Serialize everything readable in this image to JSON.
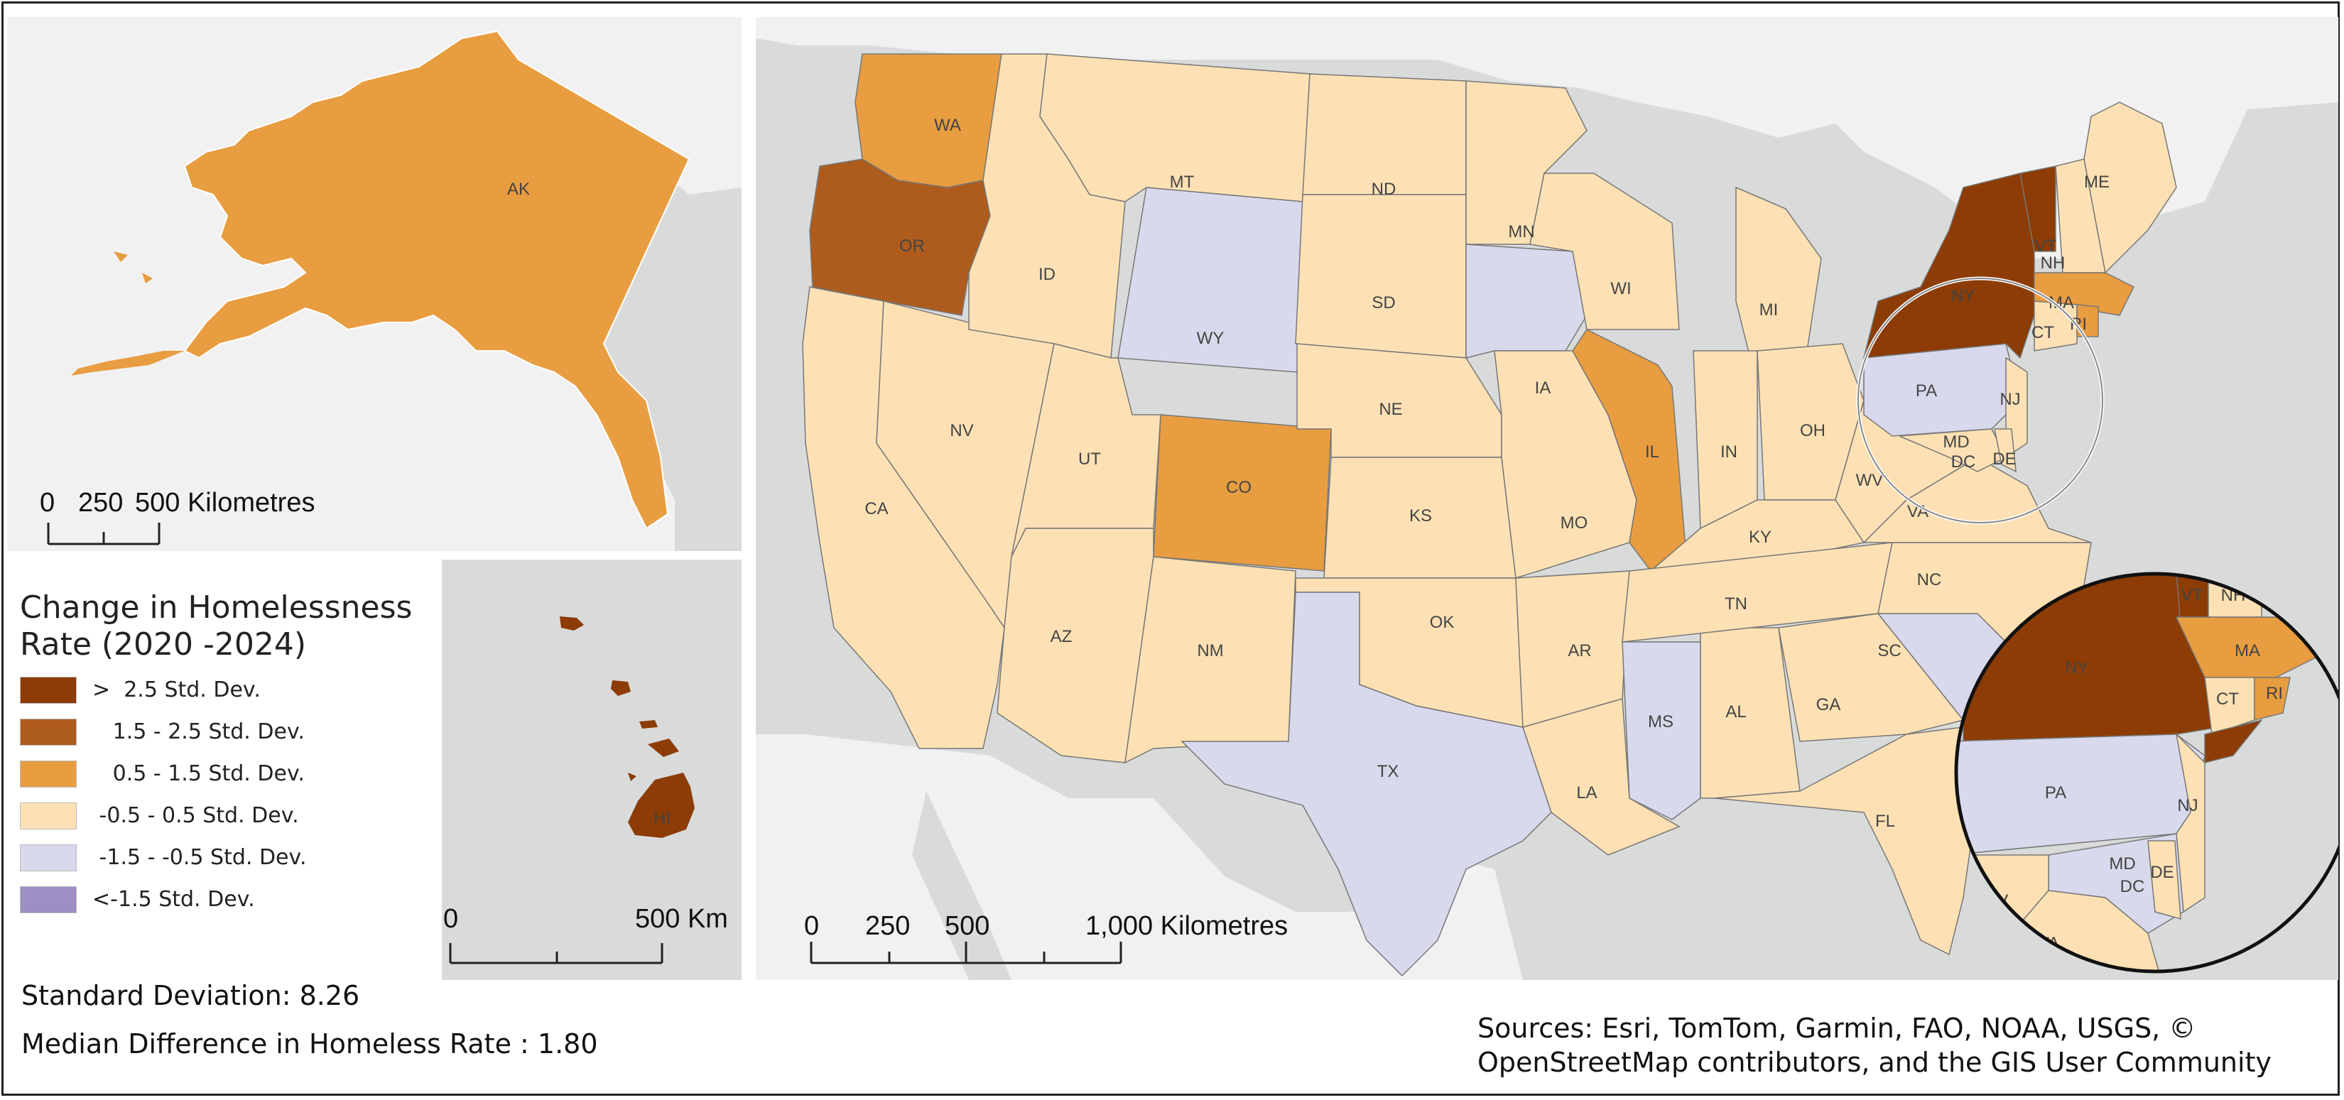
{
  "colors": {
    "water": "#d9dbdb",
    "land": "#f1f1f1",
    "gt_2_5": "#8c3c04",
    "1_5_to_2_5": "#ae5c1d",
    "0_5_to_1_5": "#e89d40",
    "m0_5_to_0_5": "#fde1b4",
    "m1_5_to_m0_5": "#d8d9ec",
    "lt_m1_5": "#9d8fc6"
  },
  "legend": {
    "title_line1": "Change in Homelessness",
    "title_line2": "Rate (2020 -2024)",
    "items": [
      {
        "label": ">  2.5 Std. Dev.",
        "color": "#8c3c04"
      },
      {
        "label": "   1.5 - 2.5 Std. Dev.",
        "color": "#ae5c1d"
      },
      {
        "label": "   0.5 - 1.5 Std. Dev.",
        "color": "#e89d40"
      },
      {
        "label": " -0.5 - 0.5 Std. Dev.",
        "color": "#fde1b4"
      },
      {
        "label": " -1.5 - -0.5 Std. Dev.",
        "color": "#d8d9ec"
      },
      {
        "label": "<-1.5 Std. Dev.",
        "color": "#9d8fc6"
      }
    ]
  },
  "stats": {
    "std_dev": "Standard Deviation: 8.26",
    "median": "Median Difference in Homeless Rate : 1.80"
  },
  "sources": {
    "line1": "Sources: Esri, TomTom, Garmin, FAO, NOAA, USGS, ©",
    "line2": "OpenStreetMap contributors, and the GIS User Community"
  },
  "alaska_scale": {
    "t0": "0",
    "t1": "250",
    "t2": "500 Kilometres"
  },
  "hawaii_scale": {
    "t0": "0",
    "t1": "500 Km"
  },
  "conus_scale": {
    "t0": "0",
    "t1": "250",
    "t2": "500",
    "t3": "1,000 Kilometres"
  },
  "labels": {
    "AK": "AK",
    "HI": "HI",
    "WA": "WA",
    "OR": "OR",
    "CA": "CA",
    "ID": "ID",
    "NV": "NV",
    "MT": "MT",
    "WY": "WY",
    "UT": "UT",
    "AZ": "AZ",
    "CO": "CO",
    "NM": "NM",
    "ND": "ND",
    "SD": "SD",
    "NE": "NE",
    "KS": "KS",
    "OK": "OK",
    "TX": "TX",
    "MN": "MN",
    "IA": "IA",
    "MO": "MO",
    "AR": "AR",
    "LA": "LA",
    "WI": "WI",
    "IL": "IL",
    "MS": "MS",
    "MI": "MI",
    "IN": "IN",
    "KY": "KY",
    "TN": "TN",
    "AL": "AL",
    "OH": "OH",
    "WV": "WV",
    "VA": "VA",
    "NC": "NC",
    "SC": "SC",
    "GA": "GA",
    "FL": "FL",
    "PA": "PA",
    "NY": "NY",
    "VT": "VT",
    "NH": "NH",
    "ME": "ME",
    "MA": "MA",
    "CT": "CT",
    "RI": "RI",
    "NJ": "NJ",
    "DE": "DE",
    "MD": "MD",
    "DC": "DC"
  },
  "inset_labels": {
    "NY": "NY",
    "VT": "VT",
    "NH": "NH",
    "MA": "MA",
    "CT": "CT",
    "RI": "RI",
    "PA": "PA",
    "NJ": "NJ",
    "MD": "MD",
    "DC": "DC",
    "DE": "DE",
    "WV": "WV",
    "VA": "VA"
  }
}
